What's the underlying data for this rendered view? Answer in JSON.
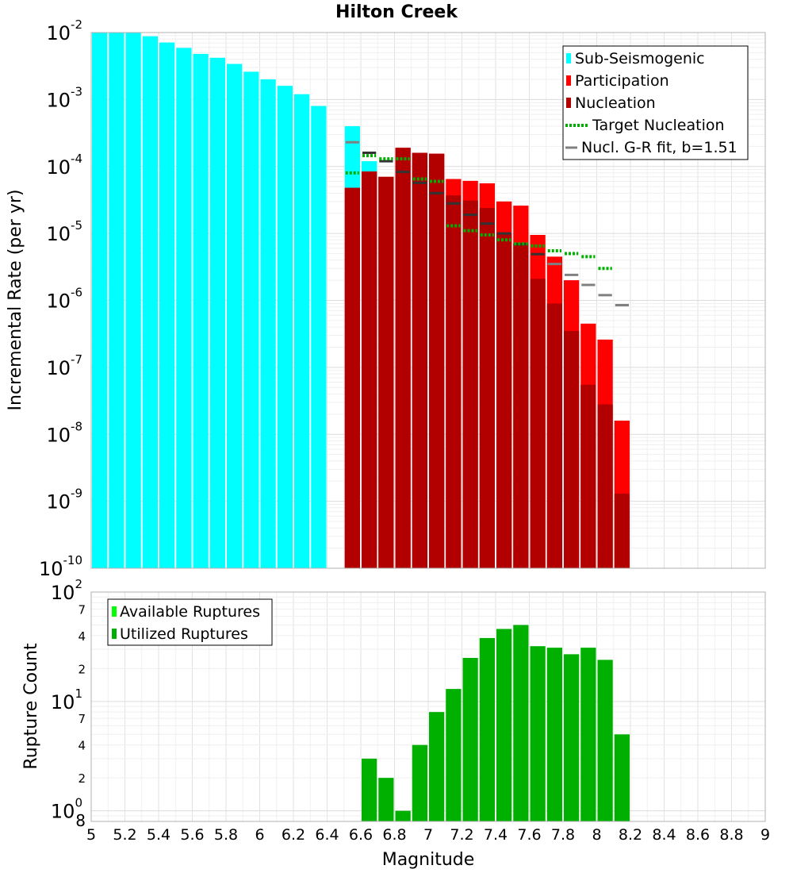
{
  "chart_data": [
    {
      "type": "bar",
      "title": "Hilton Creek",
      "xlabel": "",
      "ylabel": "Incremental Rate (per yr)",
      "y_scale": "log",
      "ylim": [
        1e-10,
        0.01
      ],
      "xlim": [
        5,
        9
      ],
      "y_ticks": [
        {
          "base": "10",
          "exp": "-2"
        },
        {
          "base": "10",
          "exp": "-3"
        },
        {
          "base": "10",
          "exp": "-4"
        },
        {
          "base": "10",
          "exp": "-5"
        },
        {
          "base": "10",
          "exp": "-6"
        },
        {
          "base": "10",
          "exp": "-7"
        },
        {
          "base": "10",
          "exp": "-8"
        },
        {
          "base": "10",
          "exp": "-9"
        },
        {
          "base": "10",
          "exp": "-10"
        }
      ],
      "grid": true,
      "legend_position": "top-right",
      "legend": [
        {
          "label": "Sub-Seismogenic",
          "color": "#00ffff",
          "style": "bar"
        },
        {
          "label": "Participation",
          "color": "#ff0000",
          "style": "bar"
        },
        {
          "label": "Nucleation",
          "color": "#b20000",
          "style": "bar"
        },
        {
          "label": "Target Nucleation",
          "color": "#00b000",
          "style": "dotted"
        },
        {
          "label": "Nucl. G-R fit, b=1.51",
          "color": "#808080",
          "style": "line"
        }
      ],
      "series": [
        {
          "name": "Sub-Seismogenic",
          "color": "#00ffff",
          "x": [
            5.0,
            5.1,
            5.2,
            5.3,
            5.4,
            5.5,
            5.6,
            5.7,
            5.8,
            5.9,
            6.0,
            6.1,
            6.2,
            6.3,
            6.5,
            6.6
          ],
          "values": [
            0.01,
            0.01,
            0.01,
            0.0088,
            0.0071,
            0.0059,
            0.0048,
            0.0042,
            0.0034,
            0.0026,
            0.002,
            0.0016,
            0.0012,
            0.0008,
            0.0004,
            0.00012
          ]
        },
        {
          "name": "Participation",
          "color": "#ff0000",
          "x": [
            6.5,
            6.6,
            6.7,
            6.8,
            6.9,
            7.0,
            7.1,
            7.2,
            7.3,
            7.4,
            7.5,
            7.6,
            7.7,
            7.8,
            7.9,
            8.0
          ],
          "values": [
            4.8e-05,
            8.4e-05,
            7e-05,
            0.00019,
            0.00016,
            0.000155,
            6.5e-05,
            6.1e-05,
            5.6e-05,
            3e-05,
            2.6e-05,
            9.5e-06,
            4.5e-06,
            2e-06,
            4.5e-07,
            2.6e-07
          ]
        },
        {
          "name": "Nucleation",
          "color": "#b20000",
          "x": [
            6.5,
            6.6,
            6.7,
            6.8,
            6.9,
            7.0,
            7.1,
            7.2,
            7.3,
            7.4,
            7.5,
            7.6,
            7.7,
            7.8,
            7.9,
            8.0
          ],
          "values": [
            4.8e-05,
            8.4e-05,
            7e-05,
            0.00019,
            0.00016,
            0.000155,
            3.7e-05,
            3.1e-05,
            2.4e-05,
            1e-05,
            7e-06,
            2.1e-06,
            9e-07,
            3.5e-07,
            5.5e-08,
            2.8e-08
          ]
        },
        {
          "name": "Participation (M8.1)",
          "color": "#ff0000",
          "x": [
            8.1
          ],
          "values": [
            1.6e-08
          ]
        },
        {
          "name": "Nucleation (M8.1)",
          "color": "#b20000",
          "x": [
            8.1
          ],
          "values": [
            1.3e-09
          ]
        },
        {
          "name": "Target Nucleation",
          "color": "#00b000",
          "style": "dotted",
          "x": [
            6.5,
            6.6,
            6.7,
            6.8,
            6.9,
            7.0,
            7.1,
            7.2,
            7.3,
            7.4,
            7.5,
            7.6,
            7.7,
            7.8,
            7.9,
            8.0
          ],
          "values": [
            8e-05,
            0.000145,
            0.00013,
            0.00013,
            6.5e-05,
            6e-05,
            1.3e-05,
            1.1e-05,
            9.5e-06,
            8e-06,
            7e-06,
            6.5e-06,
            5.5e-06,
            5e-06,
            4.5e-06,
            3e-06
          ]
        },
        {
          "name": "Nucl. G-R fit, b=1.51",
          "color": "#808080",
          "style": "line",
          "x": [
            6.5,
            6.6,
            6.7,
            6.8,
            6.9,
            7.0,
            7.1,
            7.2,
            7.3,
            7.4,
            7.5,
            7.6,
            7.7,
            7.8,
            7.9,
            8.0
          ],
          "values": [
            0.00023,
            0.00016,
            0.00012,
            8.3e-05,
            5.7e-05,
            4e-05,
            2.8e-05,
            1.9e-05,
            1.4e-05,
            1e-05,
            6.9e-06,
            4.9e-06,
            3.5e-06,
            2.4e-06,
            1.7e-06,
            1.2e-06
          ]
        },
        {
          "name": "G-R fit (M8.1)",
          "color": "#808080",
          "style": "line",
          "x": [
            8.1
          ],
          "values": [
            8.5e-07
          ]
        }
      ]
    },
    {
      "type": "bar",
      "title": "",
      "xlabel": "Magnitude",
      "ylabel": "Rupture Count",
      "y_scale": "log",
      "ylim": [
        0.8,
        100
      ],
      "xlim": [
        5,
        9
      ],
      "x_ticks": [
        "5",
        "5.2",
        "5.4",
        "5.6",
        "5.8",
        "6",
        "6.2",
        "6.4",
        "6.6",
        "6.8",
        "7",
        "7.2",
        "7.4",
        "7.6",
        "7.8",
        "8",
        "8.2",
        "8.4",
        "8.6",
        "8.8",
        "9"
      ],
      "y_ticks": [
        {
          "text": "10",
          "exp": "2"
        },
        {
          "text": "7"
        },
        {
          "text": "4"
        },
        {
          "text": "2"
        },
        {
          "text": "10",
          "exp": "1"
        },
        {
          "text": "7"
        },
        {
          "text": "4"
        },
        {
          "text": "2"
        },
        {
          "text": "10",
          "exp": "0"
        },
        {
          "text": "8"
        }
      ],
      "grid": true,
      "legend_position": "top-left",
      "legend": [
        {
          "label": "Available Ruptures",
          "color": "#00ff00"
        },
        {
          "label": "Utilized Ruptures",
          "color": "#00b000"
        }
      ],
      "series": [
        {
          "name": "Utilized Ruptures",
          "color": "#00b000",
          "x": [
            6.6,
            6.7,
            6.8,
            6.9,
            7.0,
            7.1,
            7.2,
            7.3,
            7.4,
            7.5,
            7.6,
            7.7,
            7.8,
            7.9,
            8.0,
            8.1
          ],
          "values": [
            3,
            2,
            1,
            4,
            8,
            13,
            25,
            38,
            46,
            50,
            32,
            31,
            27,
            31,
            24,
            5
          ]
        }
      ]
    }
  ]
}
